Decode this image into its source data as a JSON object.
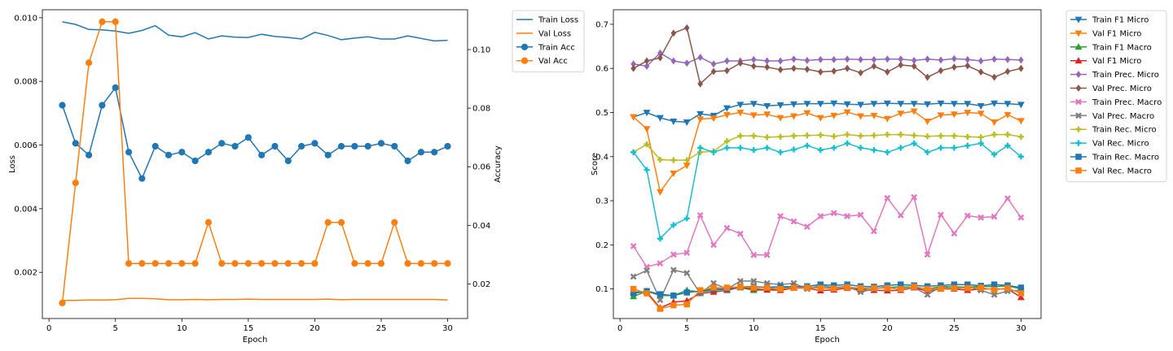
{
  "chart_data": [
    {
      "type": "line",
      "xlabel": "Epoch",
      "ylabel": "Loss",
      "y2label": "Accuracy",
      "xlim": [
        -0.5,
        31.5
      ],
      "ylim": [
        0.00055,
        0.01025
      ],
      "y2lim": [
        0.0082,
        0.1136
      ],
      "xticks": [
        "0",
        "5",
        "10",
        "15",
        "20",
        "25",
        "30"
      ],
      "yticks": [
        "0.002",
        "0.004",
        "0.006",
        "0.008",
        "0.010"
      ],
      "y2ticks": [
        "0.02",
        "0.04",
        "0.06",
        "0.08",
        "0.10"
      ],
      "grid": false,
      "legend_position": "outside-right",
      "x": [
        1,
        2,
        3,
        4,
        5,
        6,
        7,
        8,
        9,
        10,
        11,
        12,
        13,
        14,
        15,
        16,
        17,
        18,
        19,
        20,
        21,
        22,
        23,
        24,
        25,
        26,
        27,
        28,
        29,
        30
      ],
      "series": [
        {
          "name": "Train Loss",
          "axis": "left",
          "color": "#1f77b4",
          "marker": "none",
          "values": [
            0.00987,
            0.00979,
            0.00963,
            0.00962,
            0.00958,
            0.00951,
            0.0096,
            0.00975,
            0.00945,
            0.0094,
            0.00953,
            0.00933,
            0.00943,
            0.00939,
            0.00938,
            0.00948,
            0.00941,
            0.00938,
            0.00933,
            0.00954,
            0.00944,
            0.00931,
            0.00936,
            0.0094,
            0.00933,
            0.00933,
            0.00943,
            0.00935,
            0.00927,
            0.00929
          ]
        },
        {
          "name": "Val Loss",
          "axis": "left",
          "color": "#ff7f0e",
          "marker": "none",
          "values": [
            0.00112,
            0.00112,
            0.00113,
            0.00113,
            0.00114,
            0.00118,
            0.00118,
            0.00117,
            0.00114,
            0.00114,
            0.00115,
            0.00114,
            0.00115,
            0.00115,
            0.00116,
            0.00115,
            0.00115,
            0.00115,
            0.00115,
            0.00115,
            0.00116,
            0.00114,
            0.00115,
            0.00115,
            0.00115,
            0.00115,
            0.00115,
            0.00115,
            0.00115,
            0.00113
          ]
        },
        {
          "name": "Train Acc",
          "axis": "right",
          "color": "#1f77b4",
          "marker": "circle",
          "values": [
            0.081,
            0.068,
            0.064,
            0.081,
            0.087,
            0.065,
            0.056,
            0.067,
            0.064,
            0.065,
            0.062,
            0.065,
            0.068,
            0.067,
            0.07,
            0.064,
            0.067,
            0.062,
            0.067,
            0.068,
            0.064,
            0.067,
            0.067,
            0.067,
            0.068,
            0.067,
            0.062,
            0.065,
            0.065,
            0.067
          ]
        },
        {
          "name": "Val Acc",
          "axis": "right",
          "color": "#ff7f0e",
          "marker": "circle",
          "values": [
            0.0135,
            0.0545,
            0.0955,
            0.1095,
            0.1095,
            0.027,
            0.027,
            0.027,
            0.027,
            0.027,
            0.027,
            0.041,
            0.027,
            0.027,
            0.027,
            0.027,
            0.027,
            0.027,
            0.027,
            0.027,
            0.041,
            0.041,
            0.027,
            0.027,
            0.027,
            0.041,
            0.027,
            0.027,
            0.027,
            0.027
          ]
        }
      ]
    },
    {
      "type": "line",
      "xlabel": "Epoch",
      "ylabel": "Score",
      "xlim": [
        -0.5,
        31.5
      ],
      "ylim": [
        0.033,
        0.733
      ],
      "xticks": [
        "0",
        "5",
        "10",
        "15",
        "20",
        "25",
        "30"
      ],
      "yticks": [
        "0.1",
        "0.2",
        "0.3",
        "0.4",
        "0.5",
        "0.6",
        "0.7"
      ],
      "grid": false,
      "legend_position": "outside-right",
      "x": [
        1,
        2,
        3,
        4,
        5,
        6,
        7,
        8,
        9,
        10,
        11,
        12,
        13,
        14,
        15,
        16,
        17,
        18,
        19,
        20,
        21,
        22,
        23,
        24,
        25,
        26,
        27,
        28,
        29,
        30
      ],
      "series": [
        {
          "name": "Train F1 Micro",
          "color": "#1f77b4",
          "marker": "triangle-down",
          "values": [
            0.49,
            0.5,
            0.488,
            0.48,
            0.478,
            0.497,
            0.493,
            0.51,
            0.518,
            0.52,
            0.515,
            0.517,
            0.519,
            0.52,
            0.52,
            0.521,
            0.519,
            0.518,
            0.52,
            0.521,
            0.52,
            0.52,
            0.519,
            0.521,
            0.52,
            0.52,
            0.515,
            0.521,
            0.52,
            0.518
          ]
        },
        {
          "name": "Val F1 Micro",
          "color": "#ff7f0e",
          "marker": "triangle-down",
          "values": [
            0.49,
            0.463,
            0.32,
            0.362,
            0.38,
            0.485,
            0.487,
            0.495,
            0.5,
            0.494,
            0.496,
            0.488,
            0.492,
            0.499,
            0.488,
            0.493,
            0.501,
            0.492,
            0.493,
            0.486,
            0.498,
            0.503,
            0.48,
            0.494,
            0.496,
            0.5,
            0.498,
            0.478,
            0.495,
            0.481
          ]
        },
        {
          "name": "Train F1 Macro",
          "color": "#2ca02c",
          "marker": "triangle-up",
          "values": [
            0.083,
            0.095,
            0.085,
            0.085,
            0.097,
            0.093,
            0.097,
            0.1,
            0.103,
            0.097,
            0.098,
            0.102,
            0.103,
            0.104,
            0.103,
            0.102,
            0.105,
            0.1,
            0.102,
            0.103,
            0.105,
            0.104,
            0.1,
            0.105,
            0.105,
            0.104,
            0.106,
            0.105,
            0.107,
            0.1
          ]
        },
        {
          "name": "Val F1 Micro",
          "color": "#d62728",
          "marker": "triangle-up",
          "values": [
            0.093,
            0.093,
            0.057,
            0.07,
            0.073,
            0.09,
            0.093,
            0.097,
            0.104,
            0.1,
            0.098,
            0.097,
            0.102,
            0.102,
            0.096,
            0.098,
            0.102,
            0.098,
            0.097,
            0.096,
            0.097,
            0.103,
            0.095,
            0.1,
            0.1,
            0.097,
            0.1,
            0.1,
            0.1,
            0.081
          ]
        },
        {
          "name": "Train Prec. Micro",
          "color": "#9467bd",
          "marker": "diamond",
          "values": [
            0.61,
            0.605,
            0.635,
            0.617,
            0.612,
            0.625,
            0.61,
            0.617,
            0.617,
            0.62,
            0.617,
            0.617,
            0.621,
            0.618,
            0.62,
            0.62,
            0.621,
            0.62,
            0.62,
            0.621,
            0.621,
            0.618,
            0.621,
            0.619,
            0.622,
            0.62,
            0.617,
            0.621,
            0.62,
            0.619
          ]
        },
        {
          "name": "Val Prec. Micro",
          "color": "#8c564b",
          "marker": "diamond",
          "values": [
            0.6,
            0.617,
            0.624,
            0.68,
            0.692,
            0.565,
            0.593,
            0.595,
            0.612,
            0.605,
            0.603,
            0.597,
            0.6,
            0.598,
            0.592,
            0.594,
            0.6,
            0.59,
            0.605,
            0.592,
            0.608,
            0.605,
            0.58,
            0.595,
            0.603,
            0.606,
            0.592,
            0.58,
            0.593,
            0.6
          ]
        },
        {
          "name": "Train Prec. Macro",
          "color": "#e377c2",
          "marker": "x",
          "values": [
            0.197,
            0.15,
            0.158,
            0.178,
            0.182,
            0.267,
            0.2,
            0.238,
            0.225,
            0.177,
            0.177,
            0.265,
            0.253,
            0.241,
            0.265,
            0.272,
            0.265,
            0.268,
            0.231,
            0.306,
            0.267,
            0.308,
            0.178,
            0.268,
            0.226,
            0.266,
            0.262,
            0.264,
            0.305,
            0.262
          ]
        },
        {
          "name": "Val Prec. Macro",
          "color": "#7f7f7f",
          "marker": "x",
          "values": [
            0.128,
            0.142,
            0.075,
            0.143,
            0.136,
            0.09,
            0.113,
            0.1,
            0.118,
            0.118,
            0.113,
            0.11,
            0.113,
            0.1,
            0.108,
            0.103,
            0.106,
            0.093,
            0.1,
            0.105,
            0.098,
            0.103,
            0.087,
            0.105,
            0.1,
            0.105,
            0.097,
            0.087,
            0.095,
            0.097
          ]
        },
        {
          "name": "Train Rec. Micro",
          "color": "#bcbd22",
          "marker": "plus",
          "values": [
            0.41,
            0.428,
            0.393,
            0.392,
            0.392,
            0.41,
            0.412,
            0.435,
            0.447,
            0.447,
            0.444,
            0.445,
            0.447,
            0.448,
            0.449,
            0.446,
            0.45,
            0.447,
            0.448,
            0.45,
            0.45,
            0.448,
            0.446,
            0.447,
            0.447,
            0.445,
            0.444,
            0.45,
            0.45,
            0.445
          ]
        },
        {
          "name": "Val Rec. Micro",
          "color": "#17becf",
          "marker": "plus",
          "values": [
            0.41,
            0.37,
            0.214,
            0.245,
            0.26,
            0.42,
            0.41,
            0.42,
            0.42,
            0.415,
            0.42,
            0.41,
            0.416,
            0.425,
            0.415,
            0.42,
            0.43,
            0.42,
            0.415,
            0.41,
            0.42,
            0.43,
            0.41,
            0.42,
            0.42,
            0.425,
            0.43,
            0.405,
            0.425,
            0.4
          ]
        },
        {
          "name": "Train Rec. Macro",
          "color": "#1f77b4",
          "marker": "square",
          "values": [
            0.09,
            0.095,
            0.088,
            0.085,
            0.092,
            0.095,
            0.1,
            0.1,
            0.105,
            0.105,
            0.104,
            0.105,
            0.105,
            0.106,
            0.11,
            0.108,
            0.11,
            0.106,
            0.105,
            0.108,
            0.11,
            0.108,
            0.106,
            0.108,
            0.11,
            0.11,
            0.107,
            0.11,
            0.108,
            0.103
          ]
        },
        {
          "name": "Val Rec. Macro",
          "color": "#ff7f0e",
          "marker": "square",
          "values": [
            0.1,
            0.09,
            0.055,
            0.063,
            0.065,
            0.097,
            0.103,
            0.103,
            0.105,
            0.103,
            0.103,
            0.1,
            0.103,
            0.103,
            0.102,
            0.101,
            0.104,
            0.102,
            0.102,
            0.102,
            0.1,
            0.105,
            0.1,
            0.101,
            0.102,
            0.102,
            0.103,
            0.098,
            0.102,
            0.09
          ]
        }
      ]
    }
  ]
}
